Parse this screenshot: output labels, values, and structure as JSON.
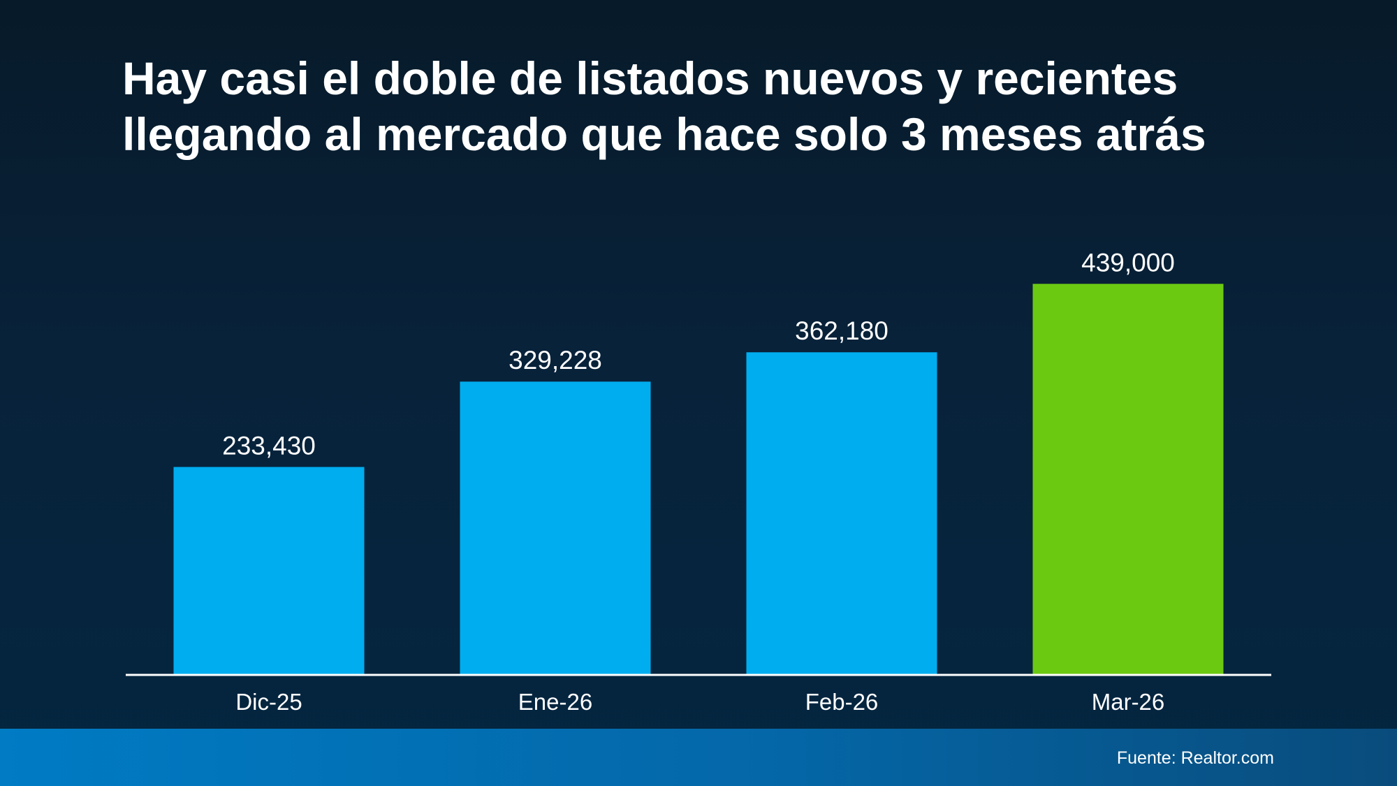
{
  "title": {
    "line1": "Hay casi el doble de listados nuevos y recientes",
    "line2": "llegando al mercado que hace solo 3 meses atrás"
  },
  "chart_data": {
    "type": "bar",
    "title": "Hay casi el doble de listados nuevos y recientes llegando al mercado que hace solo 3 meses atrás",
    "categories": [
      "Dic-25",
      "Ene-26",
      "Feb-26",
      "Mar-26"
    ],
    "values": [
      233430,
      329228,
      362180,
      439000
    ],
    "value_labels": [
      "233,430",
      "329,228",
      "362,180",
      "439,000"
    ],
    "colors": [
      "#00adef",
      "#00adef",
      "#00adef",
      "#6cc912"
    ],
    "ylim": [
      0,
      640000
    ],
    "xlabel": "",
    "ylabel": "",
    "grid": false,
    "legend": "none"
  },
  "colors": {
    "bar": "#00adef",
    "highlight_bar": "#6cc912",
    "axis": "#ffffff"
  },
  "footer": {
    "source": "Fuente: Realtor.com"
  }
}
